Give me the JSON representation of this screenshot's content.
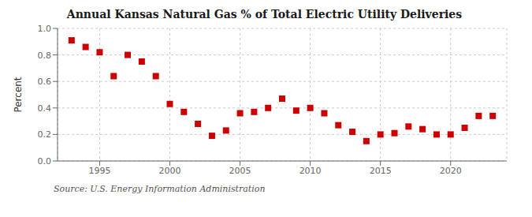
{
  "chart_data": {
    "type": "scatter",
    "title": "Annual Kansas Natural Gas % of Total Electric Utility Deliveries",
    "ylabel": "Percent",
    "source": "Source: U.S. Energy Information Administration",
    "color": "#cc0000",
    "marker": "square",
    "grid": true,
    "x": [
      1993,
      1994,
      1995,
      1996,
      1997,
      1998,
      1999,
      2000,
      2001,
      2002,
      2003,
      2004,
      2005,
      2006,
      2007,
      2008,
      2009,
      2010,
      2011,
      2012,
      2013,
      2014,
      2015,
      2016,
      2017,
      2018,
      2019,
      2020,
      2021,
      2022,
      2023
    ],
    "values": [
      0.91,
      0.86,
      0.82,
      0.64,
      0.8,
      0.75,
      0.64,
      0.43,
      0.37,
      0.28,
      0.19,
      0.23,
      0.36,
      0.37,
      0.4,
      0.47,
      0.38,
      0.4,
      0.36,
      0.27,
      0.22,
      0.15,
      0.2,
      0.21,
      0.26,
      0.24,
      0.2,
      0.2,
      0.25,
      0.34,
      0.34
    ],
    "xlim": [
      1992.0,
      2024.0
    ],
    "ylim": [
      0.0,
      1.0
    ],
    "xticks": [
      1995,
      2000,
      2005,
      2010,
      2015,
      2020
    ],
    "yticks": [
      {
        "value": 0.0,
        "label": "0.0"
      },
      0.2,
      0.4,
      0.6,
      0.8,
      {
        "value": 1.0,
        "label": "1.0"
      }
    ]
  }
}
